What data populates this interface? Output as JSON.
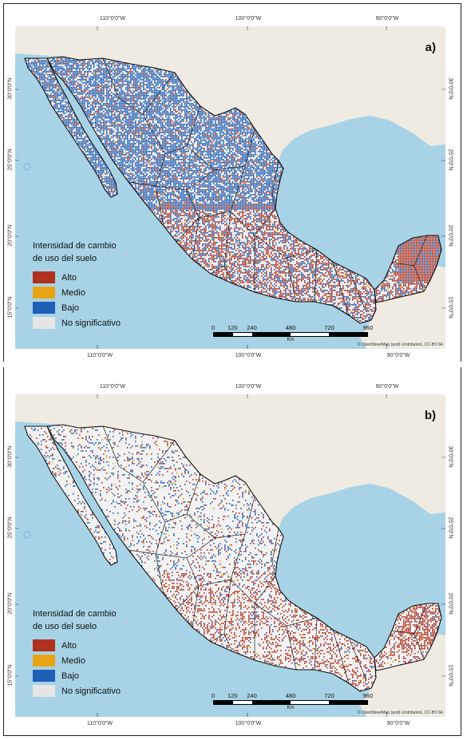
{
  "graticule": {
    "lon_labels": [
      "110°0'0\"W",
      "100°0'0\"W",
      "90°0'0\"W"
    ],
    "lat_labels": [
      "30°0'0\"N",
      "25°0'0\"N",
      "20°0'0\"N",
      "15°0'0\"N"
    ]
  },
  "legend": {
    "title_line1": "Intensidad de cambio",
    "title_line2": "de uso del suelo",
    "items": [
      {
        "label": "Alto",
        "color": "#b0311f"
      },
      {
        "label": "Medio",
        "color": "#e8a416"
      },
      {
        "label": "Bajo",
        "color": "#1f5fb5"
      },
      {
        "label": "No significativo",
        "color": "#e6e6e6"
      }
    ]
  },
  "scalebar": {
    "ticks": [
      "0",
      "120",
      "240",
      "480",
      "720",
      "960"
    ],
    "unit": "Km"
  },
  "attribution": "© OpenStreetMap (and) contributors, CC-BY-SA",
  "colors": {
    "water": "#a8d3e6",
    "land_foreign": "#efebe3",
    "land_mexico_base": "#eeeeee",
    "border": "#111111"
  },
  "panels": [
    {
      "id": "a",
      "label": "a)",
      "bajo_density": 0.65,
      "alto_density": 0.22
    },
    {
      "id": "b",
      "label": "b)",
      "bajo_density": 0.1,
      "alto_density": 0.16
    }
  ]
}
